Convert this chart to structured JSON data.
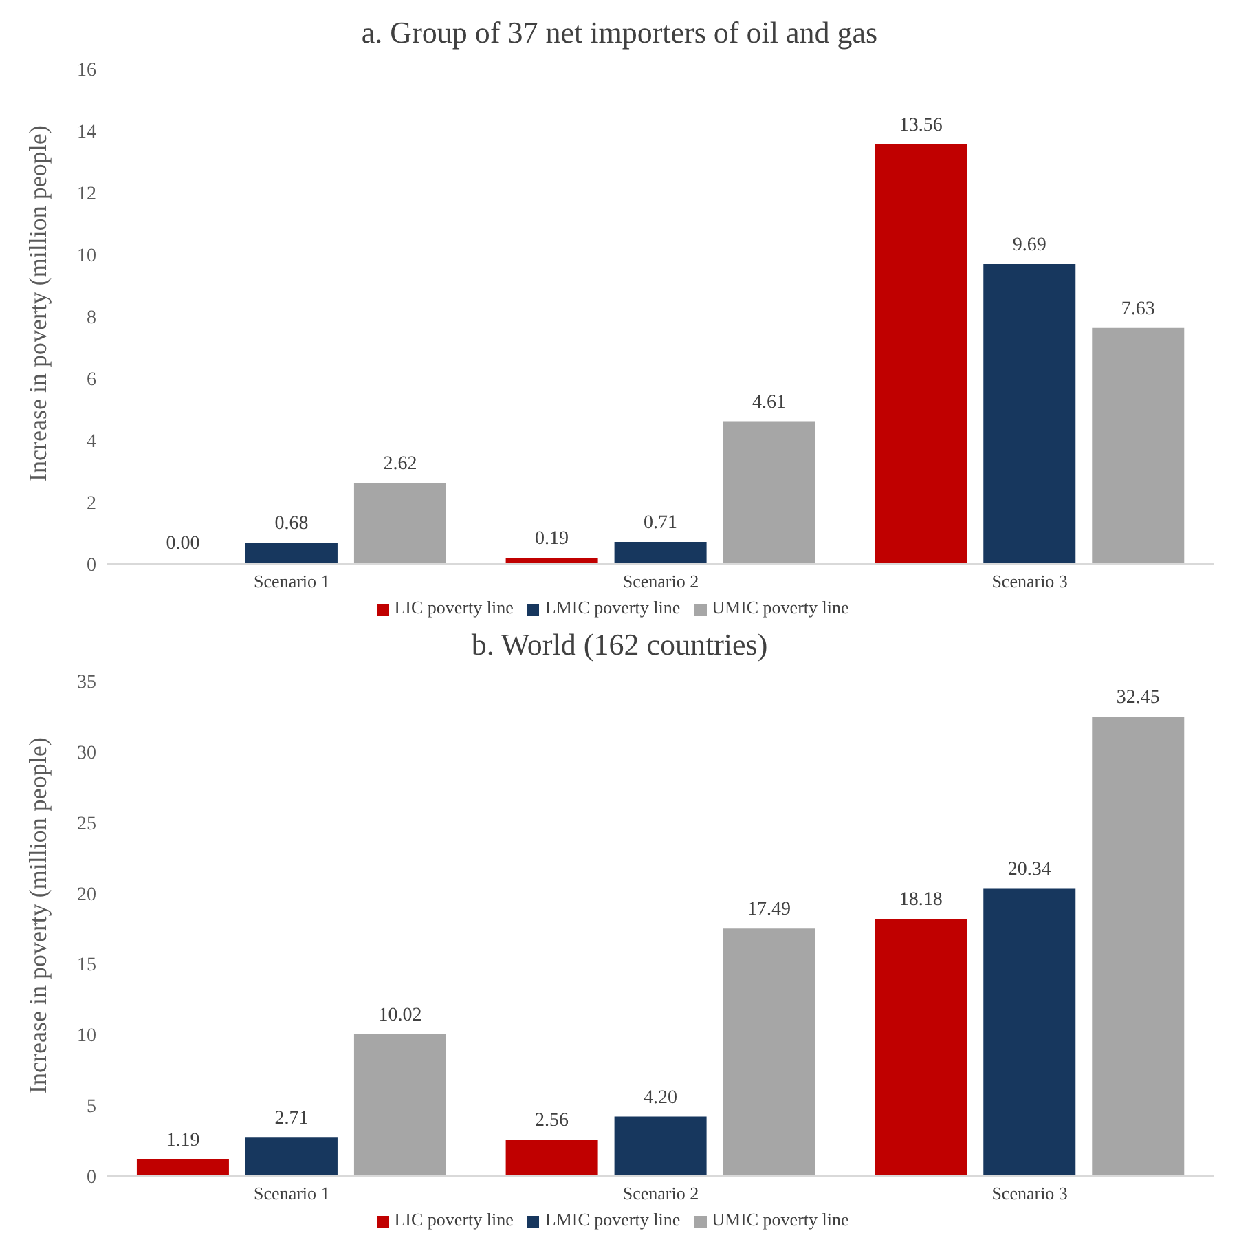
{
  "chart_data": [
    {
      "type": "bar",
      "title": "a. Group of 37 net importers of oil and gas",
      "ylabel": "Increase in poverty (million people)",
      "categories": [
        "Scenario 1",
        "Scenario 2",
        "Scenario 3"
      ],
      "ylim": [
        0,
        16
      ],
      "yticks": [
        0,
        2,
        4,
        6,
        8,
        10,
        12,
        14,
        16
      ],
      "legend": "bottom",
      "series": [
        {
          "name": "LIC poverty line",
          "color": "#c00000",
          "values": [
            0.0,
            0.19,
            13.56
          ],
          "value_labels": [
            "0.00",
            "0.19",
            "13.56"
          ]
        },
        {
          "name": "LMIC poverty line",
          "color": "#17375e",
          "values": [
            0.68,
            0.71,
            9.69
          ],
          "value_labels": [
            "0.68",
            "0.71",
            "9.69"
          ]
        },
        {
          "name": "UMIC poverty line",
          "color": "#a6a6a6",
          "values": [
            2.62,
            4.61,
            7.63
          ],
          "value_labels": [
            "2.62",
            "4.61",
            "7.63"
          ]
        }
      ]
    },
    {
      "type": "bar",
      "title": "b. World (162 countries)",
      "ylabel": "Increase in poverty (million people)",
      "categories": [
        "Scenario 1",
        "Scenario 2",
        "Scenario 3"
      ],
      "ylim": [
        0,
        35
      ],
      "yticks": [
        0,
        5,
        10,
        15,
        20,
        25,
        30,
        35
      ],
      "legend": "bottom",
      "series": [
        {
          "name": "LIC poverty line",
          "color": "#c00000",
          "values": [
            1.19,
            2.56,
            18.18
          ],
          "value_labels": [
            "1.19",
            "2.56",
            "18.18"
          ]
        },
        {
          "name": "LMIC poverty line",
          "color": "#17375e",
          "values": [
            2.71,
            4.2,
            20.34
          ],
          "value_labels": [
            "2.71",
            "4.20",
            "20.34"
          ]
        },
        {
          "name": "UMIC poverty line",
          "color": "#a6a6a6",
          "values": [
            10.02,
            17.49,
            32.45
          ],
          "value_labels": [
            "10.02",
            "17.49",
            "32.45"
          ]
        }
      ]
    }
  ]
}
